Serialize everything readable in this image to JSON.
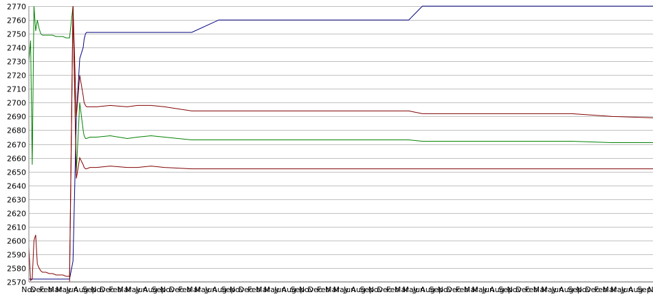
{
  "chart_data": {
    "type": "line",
    "title": "",
    "xlabel": "",
    "ylabel": "",
    "ylim": [
      2570,
      2770
    ],
    "y_ticks": [
      2570,
      2580,
      2590,
      2600,
      2610,
      2620,
      2630,
      2640,
      2650,
      2660,
      2670,
      2680,
      2690,
      2700,
      2710,
      2720,
      2730,
      2740,
      2750,
      2760,
      2770
    ],
    "grid": true,
    "legend": "none",
    "x_tick_labels": [
      "Nov",
      "Dec",
      "Feb",
      "Mar",
      "May",
      "Jun",
      "Aug",
      "Sep",
      "Nov",
      "Dec",
      "Feb",
      "Mar",
      "May",
      "Jun",
      "Aug",
      "Sep",
      "Nov",
      "Dec",
      "Feb",
      "Mar",
      "May",
      "Jun",
      "Aug",
      "Sep",
      "Nov",
      "Dec",
      "Feb",
      "Mar",
      "May",
      "Jun",
      "Aug",
      "Sep",
      "Nov",
      "Dec",
      "Feb",
      "Mar",
      "May",
      "Jun",
      "Aug",
      "Sep",
      "Nov",
      "Dec",
      "Feb",
      "Mar",
      "May",
      "Jun",
      "Aug",
      "Sep",
      "Nov",
      "Dec",
      "Feb",
      "Mar",
      "May",
      "Jun",
      "Aug",
      "Sep",
      "Nov",
      "Dec",
      "Feb",
      "Mar",
      "May",
      "Jun",
      "Aug",
      "Sep",
      "Nov",
      "Dec",
      "Feb",
      "Mar",
      "May",
      "Jun",
      "Aug",
      "Sep",
      "No"
    ],
    "x": [
      0,
      0.5,
      1,
      1.5,
      2,
      2.5,
      3,
      3.5,
      4,
      5,
      6,
      7,
      8,
      9,
      10,
      11,
      12,
      13,
      14,
      15,
      16,
      16.3,
      16.7,
      17,
      18,
      20,
      24,
      29,
      32,
      36,
      40,
      48,
      56,
      64,
      72,
      80,
      88,
      96,
      104,
      112,
      116,
      124,
      136,
      148,
      160,
      172,
      184
    ],
    "series": [
      {
        "color": "#000080",
        "values": [
          2572,
          2572,
          2572,
          2572,
          2572,
          2572,
          2572,
          2572,
          2572,
          2572,
          2572,
          2572,
          2572,
          2572,
          2572,
          2572,
          2572,
          2585,
          2690,
          2732,
          2740,
          2746,
          2750,
          2751,
          2751,
          2751,
          2751,
          2751,
          2751,
          2751,
          2751,
          2751,
          2760,
          2760,
          2760,
          2760,
          2760,
          2760,
          2760,
          2760,
          2770,
          2770,
          2770,
          2770,
          2770,
          2770,
          2770
        ]
      },
      {
        "color": "#008000",
        "values": [
          2730,
          2745,
          2655,
          2770,
          2752,
          2760,
          2754,
          2750,
          2749,
          2749,
          2749,
          2749,
          2748,
          2748,
          2748,
          2747,
          2747,
          2770,
          2650,
          2700,
          2680,
          2676,
          2674,
          2674,
          2675,
          2675,
          2676,
          2674,
          2675,
          2676,
          2675,
          2673,
          2673,
          2673,
          2673,
          2673,
          2673,
          2673,
          2673,
          2673,
          2672,
          2672,
          2672,
          2672,
          2672,
          2671,
          2671
        ]
      },
      {
        "color": "#800000",
        "values": [
          2595,
          2571,
          2572,
          2600,
          2604,
          2583,
          2580,
          2578,
          2577,
          2577,
          2576,
          2576,
          2575,
          2575,
          2575,
          2574,
          2574,
          2770,
          2690,
          2720,
          2705,
          2700,
          2698,
          2697,
          2697,
          2697,
          2698,
          2697,
          2698,
          2698,
          2697,
          2694,
          2694,
          2694,
          2694,
          2694,
          2694,
          2694,
          2694,
          2694,
          2692,
          2692,
          2692,
          2692,
          2692,
          2690,
          2689
        ]
      },
      {
        "color": "#800000",
        "values": [
          2570,
          2570,
          2570,
          2570,
          2570,
          2570,
          2570,
          2570,
          2570,
          2570,
          2570,
          2570,
          2570,
          2570,
          2570,
          2570,
          2570,
          2770,
          2645,
          2660,
          2655,
          2653,
          2652,
          2652,
          2653,
          2653,
          2654,
          2653,
          2653,
          2654,
          2653,
          2652,
          2652,
          2652,
          2652,
          2652,
          2652,
          2652,
          2652,
          2652,
          2652,
          2652,
          2652,
          2652,
          2652,
          2652,
          2652
        ]
      }
    ]
  }
}
